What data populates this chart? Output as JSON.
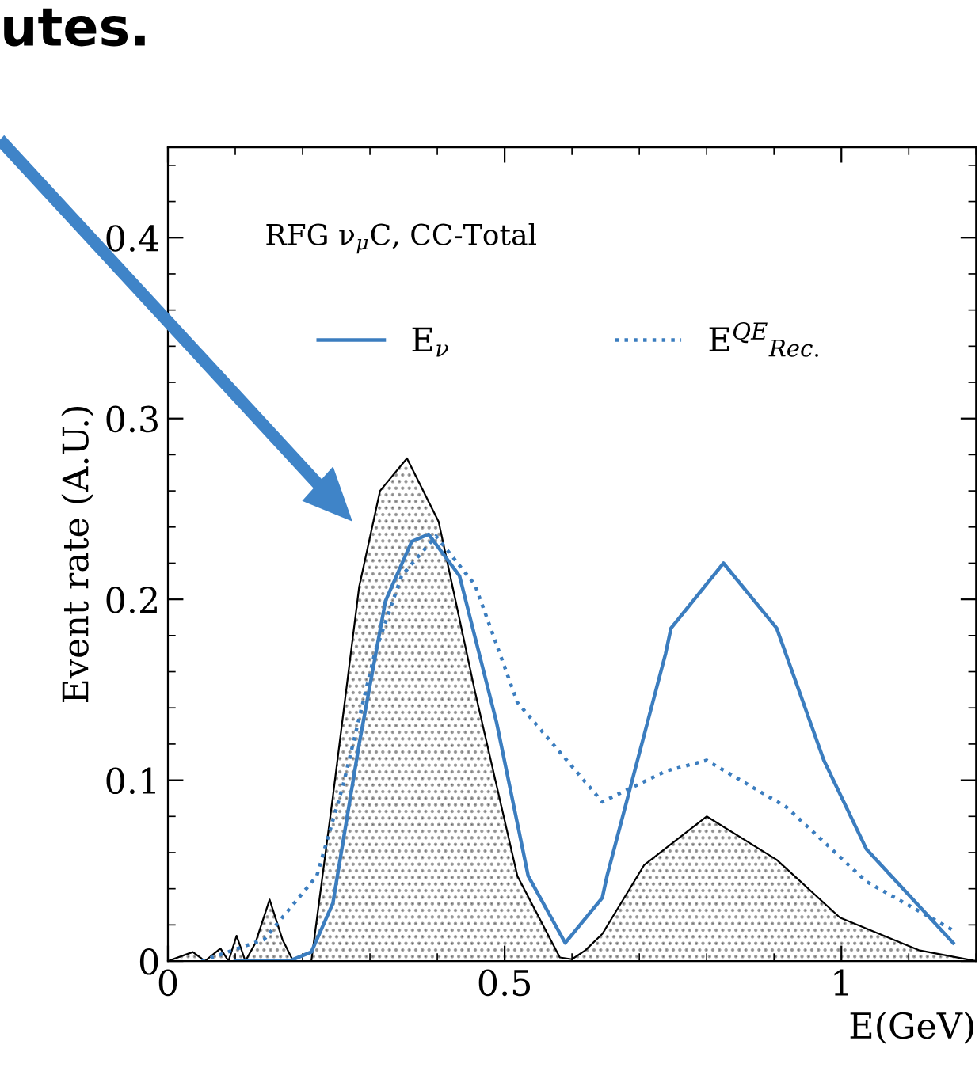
{
  "chart_data": {
    "type": "line",
    "xlabel": "E(GeV)",
    "ylabel": "Event rate (A.U.)",
    "annotations": [
      "utes.",
      "RFG ν$_{μ}$C, CC-Total"
    ],
    "xlim": [
      0,
      1.2
    ],
    "ylim": [
      0,
      0.45
    ],
    "xticks": [
      0,
      0.5,
      1
    ],
    "yticks": [
      0,
      0.1,
      0.2,
      0.3,
      0.4
    ],
    "grid": false,
    "legend": "top",
    "line_style": "solid",
    "marker": "none",
    "series": [
      {
        "type": "area",
        "color": "#000000",
        "x": [
          0,
          0.037,
          0.055,
          0.078,
          0.09,
          0.102,
          0.115,
          0.13,
          0.151,
          0.17,
          0.186,
          0.213,
          0.245,
          0.284,
          0.315,
          0.355,
          0.402,
          0.456,
          0.519,
          0.582,
          0.6,
          0.62,
          0.645,
          0.707,
          0.8,
          0.904,
          0.998,
          1.115,
          1.2
        ],
        "values": [
          0,
          0.005,
          0,
          0.007,
          0,
          0.014,
          0,
          0.01,
          0.034,
          0.012,
          0,
          0,
          0.091,
          0.207,
          0.26,
          0.278,
          0.243,
          0.149,
          0.047,
          0.002,
          0.001,
          0.006,
          0.015,
          0.053,
          0.08,
          0.056,
          0.024,
          0.006,
          0
        ]
      },
      {
        "name": "E$_{ν}$",
        "color": "#3b7dbf",
        "x": [
          0.1,
          0.18,
          0.213,
          0.245,
          0.284,
          0.323,
          0.362,
          0.387,
          0.433,
          0.488,
          0.535,
          0.59,
          0.645,
          0.652,
          0.739,
          0.747,
          0.825,
          0.904,
          0.974,
          1.037,
          1.166
        ],
        "values": [
          0,
          0,
          0.005,
          0.032,
          0.12,
          0.199,
          0.232,
          0.236,
          0.213,
          0.132,
          0.047,
          0.01,
          0.035,
          0.047,
          0.17,
          0.184,
          0.22,
          0.184,
          0.111,
          0.062,
          0.01
        ]
      },
      {
        "name": "E$^{QE}$$_{Rec.}$",
        "color": "#3b7dbf",
        "line_style": "dotted",
        "x": [
          0.05,
          0.143,
          0.221,
          0.26,
          0.307,
          0.347,
          0.398,
          0.456,
          0.519,
          0.645,
          0.739,
          0.8,
          0.919,
          1.037,
          1.166
        ],
        "values": [
          0,
          0.012,
          0.047,
          0.097,
          0.17,
          0.213,
          0.235,
          0.208,
          0.143,
          0.088,
          0.105,
          0.111,
          0.085,
          0.044,
          0.017
        ]
      }
    ]
  }
}
